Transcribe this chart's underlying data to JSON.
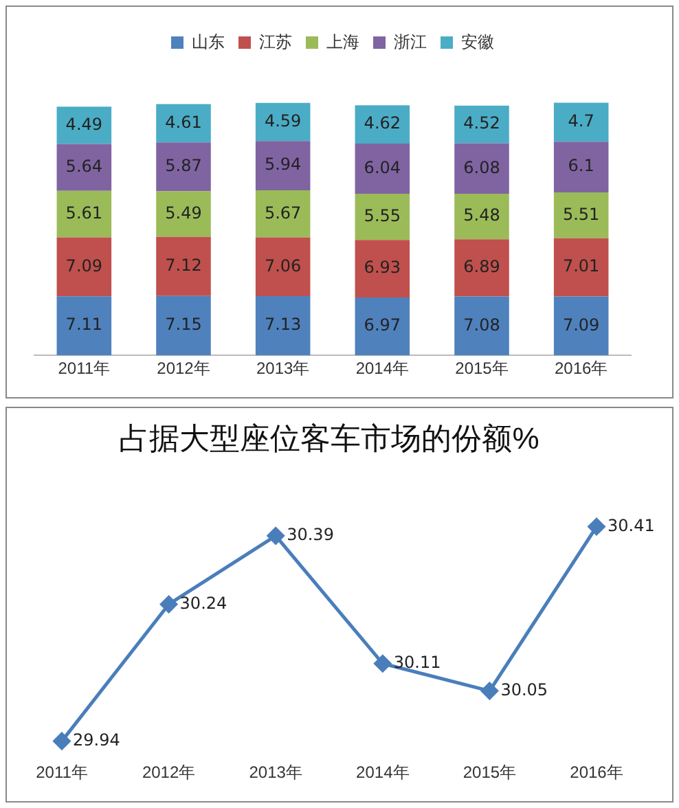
{
  "chart_data": [
    {
      "type": "bar",
      "stacked": true,
      "categories": [
        "2011年",
        "2012年",
        "2013年",
        "2014年",
        "2015年",
        "2016年"
      ],
      "series": [
        {
          "name": "山东",
          "color": "#4f81bd",
          "values": [
            7.11,
            7.15,
            7.13,
            6.97,
            7.08,
            7.09
          ]
        },
        {
          "name": "江苏",
          "color": "#c0504d",
          "values": [
            7.09,
            7.12,
            7.06,
            6.93,
            6.89,
            7.01
          ]
        },
        {
          "name": "上海",
          "color": "#9bbb59",
          "values": [
            5.61,
            5.49,
            5.67,
            5.55,
            5.48,
            5.51
          ]
        },
        {
          "name": "浙江",
          "color": "#8064a2",
          "values": [
            5.64,
            5.87,
            5.94,
            6.04,
            6.08,
            6.1
          ]
        },
        {
          "name": "安徽",
          "color": "#4bacc6",
          "values": [
            4.49,
            4.61,
            4.59,
            4.62,
            4.52,
            4.7
          ]
        }
      ],
      "data_labels": true,
      "legend": "top",
      "grid": false,
      "tick_labels": "x"
    },
    {
      "type": "line",
      "title": "占据大型座位客车市场的份额%",
      "categories": [
        "2011年",
        "2012年",
        "2013年",
        "2014年",
        "2015年",
        "2016年"
      ],
      "series": [
        {
          "color": "#4a7ebb",
          "values": [
            29.94,
            30.24,
            30.39,
            30.11,
            30.05,
            30.41
          ]
        }
      ],
      "data_labels": true,
      "legend": false,
      "grid": false,
      "tick_labels": "x",
      "marker": "diamond",
      "line_style": "solid"
    }
  ]
}
